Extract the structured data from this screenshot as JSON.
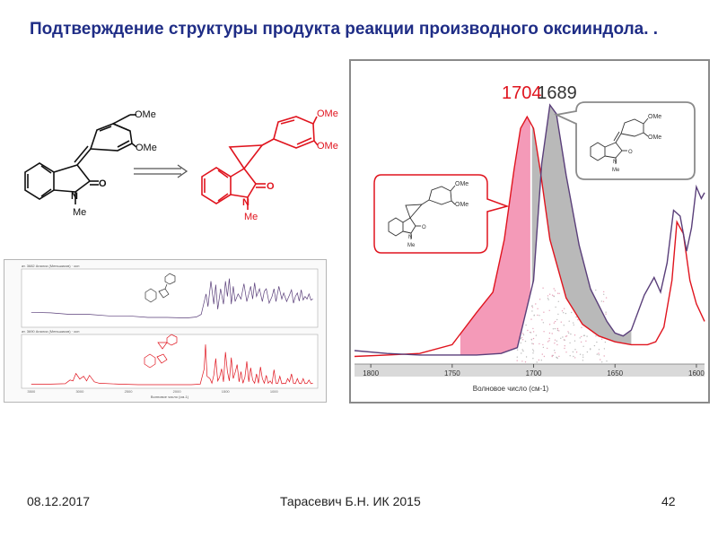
{
  "slide": {
    "title": "Подтверждение структуры продукта реакции производного оксииндола. .",
    "footer": {
      "date": "08.12.2017",
      "author": "Тарасевич Б.Н.   ИК 2015",
      "page": "42"
    }
  },
  "molecules": {
    "reactant": {
      "group1": "OMe",
      "group2": "OMe",
      "carbonyl": "O",
      "nitrogen": "N",
      "methyl": "Me"
    },
    "product": {
      "group1": "OMe",
      "group2": "OMe",
      "carbonyl": "O",
      "nitrogen": "N",
      "methyl": "Me",
      "color": "#e0141e"
    }
  },
  "colors": {
    "red": "#e0141e",
    "purple": "#5a3f7a",
    "pink_fill": "#f49ab8",
    "gray_fill": "#b9b9b9",
    "frame": "#8a8a8a"
  },
  "chart_data": [
    {
      "type": "line",
      "title": "",
      "xlabel": "Волновое число (см-1)",
      "ylabel": "",
      "xlim": [
        1810,
        1595
      ],
      "x_reversed": true,
      "xticks": [
        1800,
        1750,
        1700,
        1650,
        1600
      ],
      "peak_labels": [
        {
          "text": "1704",
          "x": 1704,
          "color": "#e0141e"
        },
        {
          "text": "1689",
          "x": 1689,
          "color": "#333333"
        }
      ],
      "series": [
        {
          "color": "#e0141e",
          "x": [
            1810,
            1790,
            1770,
            1750,
            1735,
            1725,
            1718,
            1712,
            1708,
            1704,
            1700,
            1696,
            1690,
            1680,
            1670,
            1660,
            1650,
            1640,
            1630,
            1625,
            1620,
            1615,
            1612,
            1608,
            1604,
            1600,
            1595
          ],
          "y": [
            0.02,
            0.025,
            0.03,
            0.06,
            0.17,
            0.24,
            0.42,
            0.66,
            0.8,
            0.84,
            0.8,
            0.66,
            0.42,
            0.22,
            0.13,
            0.09,
            0.07,
            0.06,
            0.06,
            0.07,
            0.12,
            0.28,
            0.48,
            0.44,
            0.28,
            0.2,
            0.14
          ]
        },
        {
          "color": "#5a3f7a",
          "x": [
            1810,
            1790,
            1770,
            1750,
            1735,
            1720,
            1710,
            1700,
            1695,
            1690,
            1686,
            1680,
            1672,
            1665,
            1655,
            1650,
            1645,
            1640,
            1632,
            1626,
            1622,
            1618,
            1614,
            1610,
            1606,
            1603,
            1600,
            1597,
            1595
          ],
          "y": [
            0.04,
            0.03,
            0.025,
            0.025,
            0.025,
            0.03,
            0.05,
            0.28,
            0.68,
            0.88,
            0.85,
            0.64,
            0.4,
            0.25,
            0.14,
            0.1,
            0.09,
            0.11,
            0.23,
            0.29,
            0.24,
            0.34,
            0.52,
            0.5,
            0.38,
            0.46,
            0.6,
            0.56,
            0.58
          ]
        }
      ],
      "fills": [
        {
          "between": "red-above-purple",
          "color": "#f49ab8",
          "x_range": [
            1745,
            1702
          ]
        },
        {
          "between": "purple-above-red",
          "color": "#b9b9b9",
          "x_range": [
            1701,
            1640
          ]
        }
      ]
    },
    {
      "type": "line",
      "title": "",
      "xlabel": "Волновое число (см-1)",
      "panels": [
        {
          "color": "#5a3f7a",
          "header": "ат. 3682 Анализ (Меньшиков) · осн",
          "x": [
            3500,
            3300,
            3100,
            2900,
            2700,
            2500,
            2300,
            2100,
            1900,
            1800,
            1750,
            1700,
            1680,
            1650,
            1620,
            1600,
            1580,
            1550,
            1520,
            1500,
            1480,
            1460,
            1440,
            1420,
            1400,
            1370,
            1340,
            1310,
            1280,
            1260,
            1240,
            1220,
            1200,
            1180,
            1150,
            1120,
            1100,
            1080,
            1050,
            1020,
            1000,
            980,
            950,
            920,
            900,
            870,
            840,
            820,
            800,
            780,
            760,
            740,
            720,
            700,
            680,
            660,
            640,
            620,
            600
          ],
          "y": [
            0.24,
            0.23,
            0.2,
            0.2,
            0.17,
            0.17,
            0.14,
            0.14,
            0.13,
            0.15,
            0.2,
            0.6,
            0.35,
            0.85,
            0.4,
            0.78,
            0.3,
            0.7,
            0.4,
            0.85,
            0.55,
            0.9,
            0.4,
            0.75,
            0.45,
            0.6,
            0.5,
            0.8,
            0.45,
            0.6,
            0.75,
            0.5,
            0.82,
            0.55,
            0.7,
            0.45,
            0.65,
            0.7,
            0.42,
            0.55,
            0.7,
            0.45,
            0.75,
            0.5,
            0.62,
            0.45,
            0.58,
            0.68,
            0.42,
            0.55,
            0.62,
            0.46,
            0.68,
            0.48,
            0.55,
            0.5,
            0.6,
            0.48,
            0.5
          ]
        },
        {
          "color": "#e0141e",
          "header": "ат. 3690 Анализ (Меньшиков) · осн",
          "x": [
            3500,
            3300,
            3150,
            3100,
            3070,
            3040,
            3000,
            2960,
            2930,
            2900,
            2850,
            2800,
            2600,
            2400,
            2200,
            2000,
            1850,
            1760,
            1720,
            1705,
            1690,
            1660,
            1640,
            1620,
            1600,
            1580,
            1560,
            1540,
            1520,
            1500,
            1480,
            1460,
            1440,
            1420,
            1400,
            1380,
            1360,
            1340,
            1320,
            1300,
            1280,
            1260,
            1240,
            1220,
            1200,
            1180,
            1160,
            1140,
            1120,
            1100,
            1080,
            1060,
            1040,
            1020,
            1000,
            980,
            960,
            940,
            920,
            900,
            880,
            860,
            840,
            820,
            800,
            780,
            760,
            740,
            720,
            700,
            680,
            660,
            640,
            620,
            600
          ],
          "y": [
            0.03,
            0.03,
            0.04,
            0.12,
            0.1,
            0.26,
            0.14,
            0.2,
            0.1,
            0.22,
            0.08,
            0.05,
            0.03,
            0.02,
            0.02,
            0.02,
            0.02,
            0.03,
            0.35,
            0.88,
            0.2,
            0.15,
            0.05,
            0.22,
            0.58,
            0.1,
            0.18,
            0.36,
            0.08,
            0.72,
            0.3,
            0.1,
            0.6,
            0.15,
            0.28,
            0.45,
            0.08,
            0.3,
            0.05,
            0.18,
            0.52,
            0.08,
            0.38,
            0.12,
            0.05,
            0.25,
            0.05,
            0.4,
            0.15,
            0.05,
            0.22,
            0.05,
            0.1,
            0.04,
            0.34,
            0.05,
            0.05,
            0.2,
            0.04,
            0.05,
            0.04,
            0.15,
            0.08,
            0.25,
            0.05,
            0.04,
            0.15,
            0.05,
            0.04,
            0.15,
            0.04,
            0.05,
            0.12,
            0.04,
            0.05
          ]
        }
      ]
    }
  ]
}
